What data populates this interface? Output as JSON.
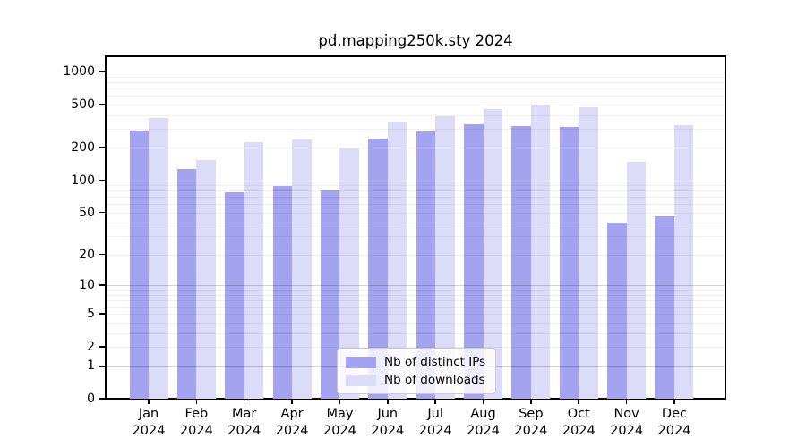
{
  "title": "pd.mapping250k.sty 2024",
  "chart_data": {
    "type": "bar",
    "title": "pd.mapping250k.sty 2024",
    "scale": "log10(value+1)",
    "grid": true,
    "legend_position": "inside-bottom-center",
    "categories": [
      "Jan",
      "Feb",
      "Mar",
      "Apr",
      "May",
      "Jun",
      "Jul",
      "Aug",
      "Sep",
      "Oct",
      "Nov",
      "Dec"
    ],
    "year_line": "2024",
    "series": [
      {
        "name": "Nb of distinct IPs",
        "color": "#a3a3f0",
        "values": [
          285,
          127,
          77,
          88,
          80,
          242,
          281,
          327,
          315,
          311,
          40,
          46
        ]
      },
      {
        "name": "Nb of downloads",
        "color": "#dcdcf8",
        "values": [
          374,
          153,
          224,
          236,
          196,
          346,
          388,
          452,
          497,
          468,
          148,
          321
        ]
      }
    ],
    "ylim": [
      0,
      1380
    ],
    "yticks": [
      1000,
      500,
      200,
      100,
      50,
      20,
      10,
      5,
      2,
      1,
      0
    ],
    "xlabel": "",
    "ylabel": ""
  },
  "legend": {
    "items": [
      {
        "label": "Nb of distinct IPs"
      },
      {
        "label": "Nb of downloads"
      }
    ]
  }
}
